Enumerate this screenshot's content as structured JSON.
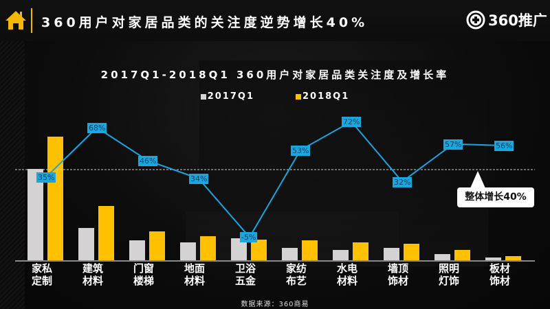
{
  "header": {
    "title": "360用户对家居品类的关注度逆势增长40%",
    "brand": "360推广",
    "home_icon": "home-icon",
    "brand_icon": "plus-circle-icon"
  },
  "colors": {
    "series_2017": "#d4d2d3",
    "series_2018": "#ffc000",
    "growth_line": "#19a7e0",
    "accent": "#f5b800"
  },
  "callout": {
    "text": "整体增长40%"
  },
  "source": "数据来源：360商易",
  "chart_data": {
    "type": "bar",
    "title": "2017Q1-2018Q1  360用户对家居品类关注度及增长率",
    "xlabel": "",
    "ylabel": "",
    "legend": [
      "2017Q1",
      "2018Q1"
    ],
    "legend_position": "top",
    "grid": false,
    "categories": [
      [
        "家私",
        "定制"
      ],
      [
        "建筑",
        "材料"
      ],
      [
        "门窗",
        "楼梯"
      ],
      [
        "地面",
        "材料"
      ],
      [
        "卫浴",
        "五金"
      ],
      [
        "家纺",
        "布艺"
      ],
      [
        "水电",
        "材料"
      ],
      [
        "墙顶",
        "饰材"
      ],
      [
        "照明",
        "灯饰"
      ],
      [
        "板材",
        "饰材"
      ]
    ],
    "series": [
      {
        "name": "2017Q1",
        "type": "bar",
        "values": [
          134,
          48,
          30,
          27,
          33,
          19,
          16,
          19,
          10,
          5
        ]
      },
      {
        "name": "2018Q1",
        "type": "bar",
        "values": [
          181,
          80,
          43,
          36,
          31,
          30,
          27,
          25,
          16,
          7
        ]
      },
      {
        "name": "增长率",
        "type": "line",
        "values": [
          35,
          68,
          46,
          34,
          -5,
          53,
          72,
          32,
          57,
          56
        ],
        "labels": [
          "35%",
          "68%",
          "46%",
          "34%",
          "-5%",
          "53%",
          "72%",
          "32%",
          "57%",
          "56%"
        ]
      }
    ],
    "reference_line": {
      "label": "整体增长40%",
      "value": 40,
      "style": "dashed"
    },
    "annotations": [
      "整体增长40%"
    ]
  }
}
